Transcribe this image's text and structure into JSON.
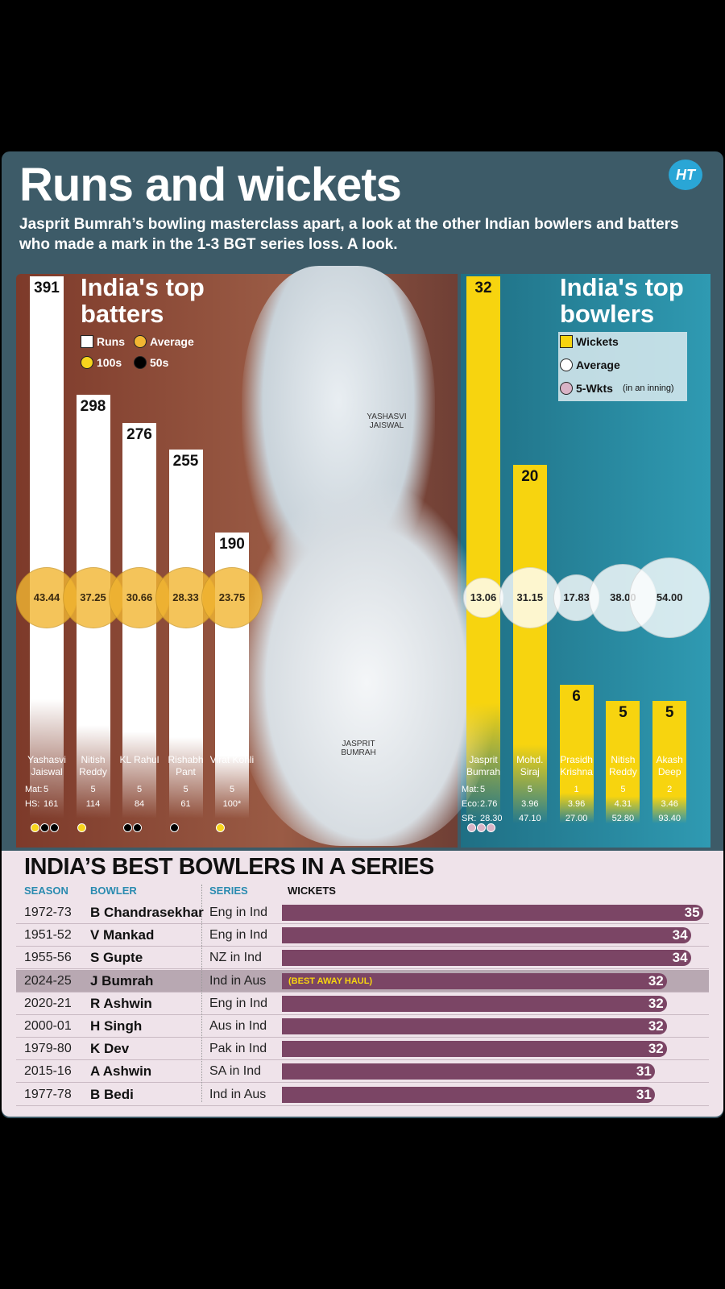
{
  "header": {
    "title": "Runs and wickets",
    "subtitle": "Jasprit Bumrah’s bowling masterclass apart, a look at the other Indian bowlers and batters who made a mark in the 1-3 BGT series loss. A look.",
    "logo": "HT"
  },
  "photo_captions": [
    "YASHASVI JAISWAL",
    "JASPRIT BUMRAH"
  ],
  "chart_data": [
    {
      "type": "bar",
      "title": "India's top batters",
      "categories": [
        "Yashasvi Jaiswal",
        "Nitish Reddy",
        "KL Rahul",
        "Rishabh Pant",
        "Virat Kohli"
      ],
      "ylim": [
        0,
        391
      ],
      "series": [
        {
          "name": "Runs",
          "color": "#ffffff",
          "values": [
            391,
            298,
            276,
            255,
            190
          ]
        },
        {
          "name": "Average",
          "color": "#f2b632",
          "values": [
            43.44,
            37.25,
            30.66,
            28.33,
            23.75
          ]
        },
        {
          "name": "100s",
          "color": "#f7d51d",
          "values": [
            1,
            1,
            0,
            0,
            1
          ]
        },
        {
          "name": "50s",
          "color": "#000000",
          "values": [
            2,
            0,
            2,
            1,
            0
          ]
        }
      ],
      "stats": [
        {
          "label": "Mat:",
          "values": [
            5,
            5,
            5,
            5,
            5
          ]
        },
        {
          "label": "HS:",
          "values": [
            161,
            114,
            84,
            61,
            100
          ],
          "value_labels": [
            "161",
            "114",
            "84",
            "61",
            "100*"
          ]
        }
      ]
    },
    {
      "type": "bar",
      "title": "India's top bowlers",
      "categories": [
        "Jasprit Bumrah",
        "Mohd. Siraj",
        "Prasidh Krishna",
        "Nitish Reddy",
        "Akash Deep"
      ],
      "ylim": [
        0,
        32
      ],
      "series": [
        {
          "name": "Wickets",
          "color": "#f7d40f",
          "values": [
            32,
            20,
            6,
            5,
            5
          ]
        },
        {
          "name": "Average",
          "color": "#ffffff",
          "values": [
            13.06,
            31.15,
            17.83,
            38.0,
            54.0
          ],
          "value_labels": [
            "13.06",
            "31.15",
            "17.83",
            "38.00",
            "54.00"
          ]
        },
        {
          "name": "5-Wkts",
          "note": "(in an inning)",
          "color": "#d9b3c6",
          "values": [
            3,
            0,
            0,
            0,
            0
          ]
        }
      ],
      "stats": [
        {
          "label": "Mat:",
          "values": [
            5,
            5,
            1,
            5,
            2
          ]
        },
        {
          "label": "Eco:",
          "values": [
            2.76,
            3.96,
            3.96,
            4.31,
            3.46
          ]
        },
        {
          "label": "SR:",
          "values": [
            28.3,
            47.1,
            27.0,
            52.8,
            93.4
          ],
          "value_labels": [
            "28.30",
            "47.10",
            "27.00",
            "52.80",
            "93.40"
          ]
        }
      ]
    },
    {
      "type": "bar",
      "orientation": "horizontal",
      "title": "INDIA’S BEST BOWLERS IN A SERIES",
      "column_headers": [
        "SEASON",
        "BOWLER",
        "SERIES",
        "WICKETS"
      ],
      "seasons": [
        "1972-73",
        "1951-52",
        "1955-56",
        "2024-25",
        "2020-21",
        "2000-01",
        "1979-80",
        "2015-16",
        "1977-78"
      ],
      "categories": [
        "B Chandrasekhar",
        "V Mankad",
        "S Gupte",
        "J Bumrah",
        "R Ashwin",
        "H Singh",
        "K Dev",
        "A Ashwin",
        "B Bedi"
      ],
      "series_played": [
        "Eng in Ind",
        "Eng in Ind",
        "NZ in Ind",
        "Ind in Aus",
        "Eng in Ind",
        "Aus in Ind",
        "Pak in Ind",
        "SA in Ind",
        "Ind in Aus"
      ],
      "values": [
        35,
        34,
        34,
        32,
        32,
        32,
        32,
        31,
        31
      ],
      "color": "#7b4565",
      "xlim": [
        0,
        35.5
      ],
      "annotation": {
        "text": "(BEST AWAY HAUL)",
        "row": 3
      }
    }
  ]
}
